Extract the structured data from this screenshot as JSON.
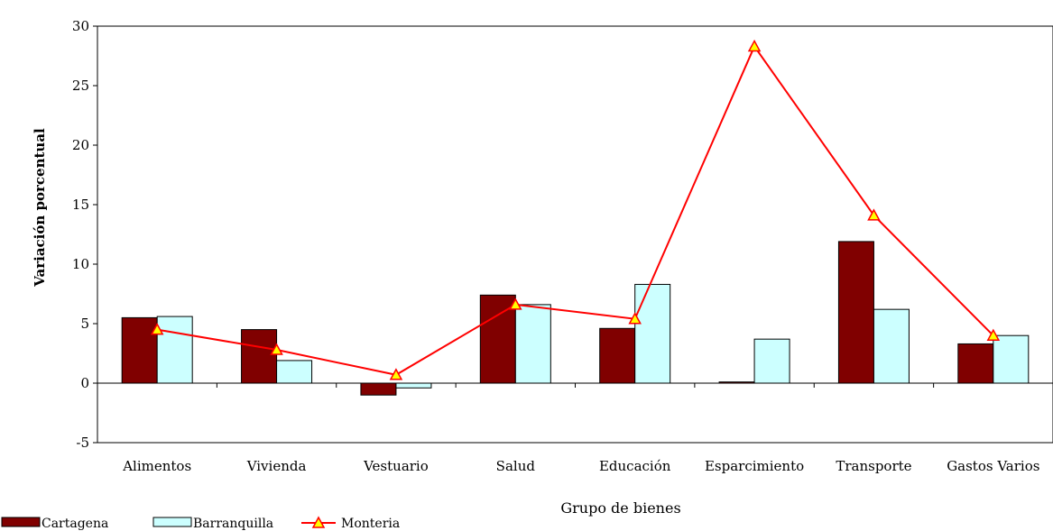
{
  "chart_data": {
    "type": "bar",
    "title": "",
    "xlabel": "Grupo de bienes",
    "ylabel": "Variación porcentual",
    "ylim": [
      -5,
      30
    ],
    "yticks": [
      -5,
      0,
      5,
      10,
      15,
      20,
      25,
      30
    ],
    "grid": false,
    "legend_position": "bottom-left",
    "categories": [
      "Alimentos",
      "Vivienda",
      "Vestuario",
      "Salud",
      "Educación",
      "Esparcimiento",
      "Transporte",
      "Gastos Varios"
    ],
    "series": [
      {
        "name": "Cartagena",
        "kind": "bar",
        "color": "#800000",
        "values": [
          5.5,
          4.5,
          -1.0,
          7.4,
          4.6,
          0.1,
          11.9,
          3.3
        ]
      },
      {
        "name": "Barranquilla",
        "kind": "bar",
        "color": "#ccffff",
        "values": [
          5.6,
          1.9,
          -0.4,
          6.6,
          8.3,
          3.7,
          6.2,
          4.0
        ]
      },
      {
        "name": "Monteria",
        "kind": "line",
        "color": "#ff0000",
        "marker": "triangle",
        "marker_fill": "#ffff00",
        "values": [
          4.5,
          2.8,
          0.7,
          6.6,
          5.4,
          28.3,
          14.1,
          4.0
        ]
      }
    ]
  }
}
